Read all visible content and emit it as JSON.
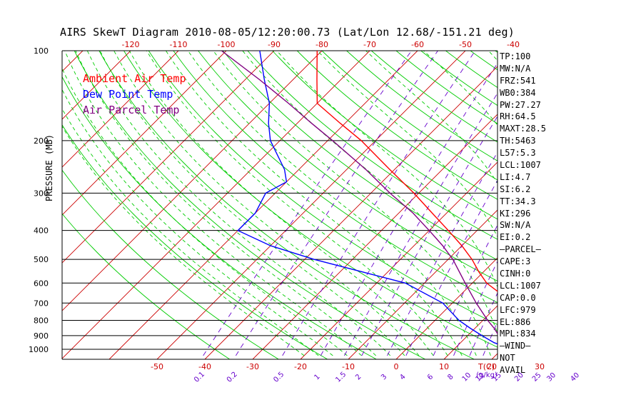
{
  "title": "AIRS SkewT Diagram 2010-08-05/12:20:00.73 (Lat/Lon 12.68/-151.21 deg)",
  "legend": [
    {
      "label": "Ambient Air Temp",
      "color": "#ff0000"
    },
    {
      "label": "Dew Point Temp",
      "color": "#0000ff"
    },
    {
      "label": "Air Parcel Temp",
      "color": "#800080"
    }
  ],
  "colors": {
    "dry_adiabat": "#00cc00",
    "moist_adiabat": "#00cc00",
    "isotherm": "#cc0000",
    "mixing_ratio": "#6600cc",
    "isobar": "#000000",
    "axis_text": "#cc0000",
    "mixing_text": "#6600cc"
  },
  "chart_data": {
    "type": "line",
    "title": "AIRS SkewT Diagram 2010-08-05/12:20:00.73 (Lat/Lon 12.68/-151.21 deg)",
    "ylabel": "PRESSURE (MB)",
    "xlabel": "T(C)",
    "y_scale": "log",
    "ylim": [
      1000,
      100
    ],
    "pressure_ticks": [
      100,
      200,
      300,
      400,
      500,
      600,
      700,
      800,
      900,
      1000
    ],
    "bottom_temp_ticks": [
      -50,
      -40,
      -30,
      -20,
      -10,
      0,
      10,
      20,
      30
    ],
    "top_temp_ticks": [
      -120,
      -110,
      -100,
      -90,
      -80,
      -70,
      -60,
      -50,
      -40
    ],
    "mixing_ratio_ticks": [
      "0.1",
      "0.2",
      "0.5",
      "1",
      "1.5",
      "2",
      "3",
      "4",
      "6",
      "8",
      "10",
      "12",
      "15",
      "20",
      "25",
      "30",
      "40"
    ],
    "mixing_ratio_unit": "g/kg",
    "grid": true,
    "series": [
      {
        "name": "Ambient Air Temp",
        "color": "#ff0000",
        "points": [
          [
            1000,
            24
          ],
          [
            950,
            21
          ],
          [
            900,
            19
          ],
          [
            850,
            17.5
          ],
          [
            800,
            16
          ],
          [
            700,
            12
          ],
          [
            650,
            8
          ],
          [
            600,
            3
          ],
          [
            550,
            -1
          ],
          [
            500,
            -5
          ],
          [
            450,
            -10
          ],
          [
            400,
            -16
          ],
          [
            350,
            -23
          ],
          [
            300,
            -31
          ],
          [
            250,
            -41
          ],
          [
            200,
            -53
          ],
          [
            175,
            -61
          ],
          [
            150,
            -70
          ],
          [
            125,
            -75
          ],
          [
            100,
            -81
          ]
        ]
      },
      {
        "name": "Dew Point Temp",
        "color": "#0000ff",
        "points": [
          [
            1000,
            22
          ],
          [
            950,
            17
          ],
          [
            900,
            13
          ],
          [
            850,
            9
          ],
          [
            800,
            5
          ],
          [
            700,
            -2
          ],
          [
            600,
            -14
          ],
          [
            500,
            -38
          ],
          [
            450,
            -50
          ],
          [
            400,
            -60
          ],
          [
            350,
            -60
          ],
          [
            300,
            -62
          ],
          [
            275,
            -60
          ],
          [
            250,
            -63
          ],
          [
            200,
            -72
          ],
          [
            175,
            -76
          ],
          [
            150,
            -80
          ],
          [
            125,
            -86
          ],
          [
            100,
            -93
          ]
        ]
      },
      {
        "name": "Air Parcel Temp",
        "color": "#800080",
        "points": [
          [
            1000,
            22
          ],
          [
            950,
            19
          ],
          [
            900,
            16.5
          ],
          [
            850,
            14
          ],
          [
            800,
            11
          ],
          [
            700,
            5
          ],
          [
            600,
            -1.5
          ],
          [
            500,
            -9
          ],
          [
            450,
            -14
          ],
          [
            400,
            -20
          ],
          [
            350,
            -27
          ],
          [
            300,
            -36
          ],
          [
            250,
            -46
          ],
          [
            200,
            -59
          ],
          [
            175,
            -67
          ],
          [
            150,
            -76
          ],
          [
            125,
            -87
          ],
          [
            100,
            -101
          ]
        ]
      }
    ]
  },
  "side_panel": [
    "TP:100",
    "MW:N/A",
    "FRZ:541",
    "WB0:384",
    "PW:27.27",
    "RH:64.5",
    "MAXT:28.5",
    "TH:5463",
    "L57:5.3",
    "LCL:1007",
    "LI:4.7",
    "SI:6.2",
    "TT:34.3",
    "KI:296",
    "SW:N/A",
    "EI:0.2",
    "—PARCEL—",
    "CAPE:3",
    "CINH:0",
    "LCL:1007",
    "CAP:0.0",
    "LFC:979",
    "EL:886",
    "MPL:834",
    "—WIND—",
    " NOT",
    " AVAIL"
  ]
}
